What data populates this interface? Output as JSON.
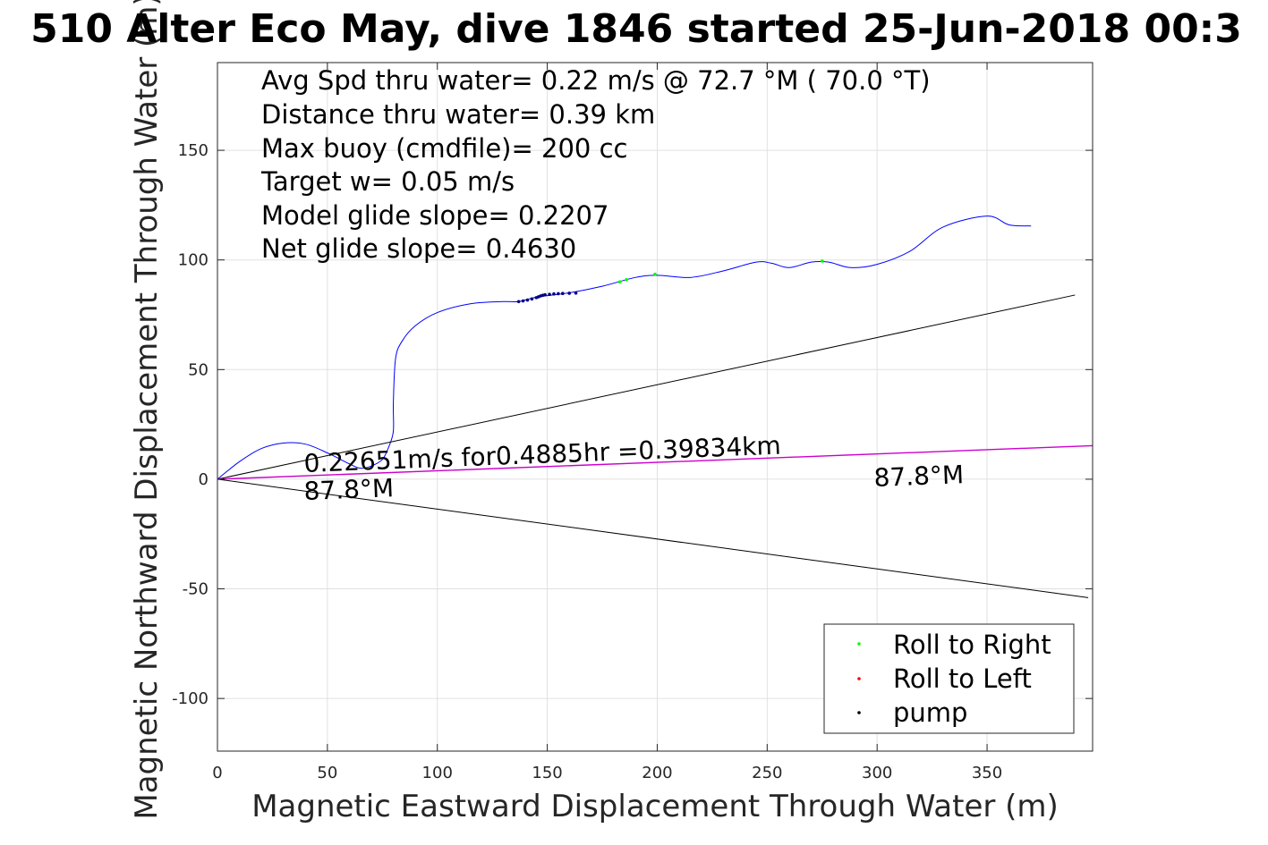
{
  "chart_data": {
    "type": "line",
    "title": "510 Alter Eco May, dive 1846 started 25-Jun-2018 00:3",
    "xlabel": "Magnetic Eastward Displacement Through Water (m)",
    "ylabel": "Magnetic Northward Displacement Through Water (m)",
    "xlim": [
      0,
      398
    ],
    "ylim": [
      -124,
      190
    ],
    "xticks": [
      0,
      50,
      100,
      150,
      200,
      250,
      300,
      350
    ],
    "yticks": [
      -100,
      -50,
      0,
      50,
      100,
      150
    ],
    "grid": true,
    "legend_location": "bottom-right",
    "stats": [
      "Avg Spd thru water=  0.22 m/s @  72.7 °M ( 70.0 °T)",
      "Distance thru water=  0.39 km",
      "Max buoy (cmdfile)= 200 cc",
      "Target w= 0.05 m/s",
      "Model glide slope= 0.2207",
      "Net glide slope= 0.4630"
    ],
    "annotations": {
      "speed_label": "0.22651m/s for0.4885hr =0.39834km",
      "heading_near": "87.8°M",
      "heading_far": "87.8°M"
    },
    "series": [
      {
        "name": "track",
        "color": "#0000ff",
        "x": [
          0,
          10,
          20,
          30,
          40,
          50,
          60,
          65,
          70,
          75,
          78,
          80,
          80,
          81,
          84,
          90,
          100,
          115,
          130,
          137,
          145,
          160,
          175,
          190,
          200,
          215,
          230,
          245,
          252,
          260,
          270,
          278,
          288,
          300,
          315,
          330,
          350,
          360,
          370
        ],
        "y": [
          0,
          8,
          14,
          16.5,
          16,
          12,
          7,
          5,
          6,
          9,
          15,
          22,
          35,
          55,
          63,
          70,
          76,
          80,
          81,
          81,
          83,
          85,
          88,
          92,
          93,
          92,
          95,
          99,
          98.5,
          96.5,
          99,
          99,
          96.5,
          98,
          104,
          115,
          120,
          116,
          115.5
        ]
      },
      {
        "name": "upper_bound",
        "color": "#000000",
        "x": [
          0,
          390
        ],
        "y": [
          0,
          84
        ]
      },
      {
        "name": "lower_bound",
        "color": "#000000",
        "x": [
          0,
          396
        ],
        "y": [
          0,
          -54
        ]
      },
      {
        "name": "current_vector",
        "color": "#cc00cc",
        "x": [
          0,
          398
        ],
        "y": [
          0,
          15.3
        ]
      }
    ],
    "points": {
      "pump": {
        "color": "#000080",
        "x": [
          137,
          139,
          141,
          143,
          145,
          146,
          147,
          148,
          149,
          151,
          153,
          155,
          157,
          160,
          163
        ],
        "y": [
          81,
          81.3,
          81.7,
          82.2,
          82.8,
          83.2,
          83.6,
          83.9,
          84.1,
          84.3,
          84.5,
          84.6,
          84.7,
          84.8,
          84.9
        ]
      },
      "roll_right": {
        "color": "#00ff00",
        "x": [
          183,
          186,
          199,
          275
        ],
        "y": [
          90,
          91,
          93.5,
          99.5
        ]
      },
      "roll_left": {
        "color": "#ff0000",
        "x": [],
        "y": []
      }
    },
    "legend": [
      {
        "label": "Roll to Right",
        "color": "#00ff00"
      },
      {
        "label": "Roll to Left",
        "color": "#ff0000"
      },
      {
        "label": "pump",
        "color": "#000000"
      }
    ]
  }
}
